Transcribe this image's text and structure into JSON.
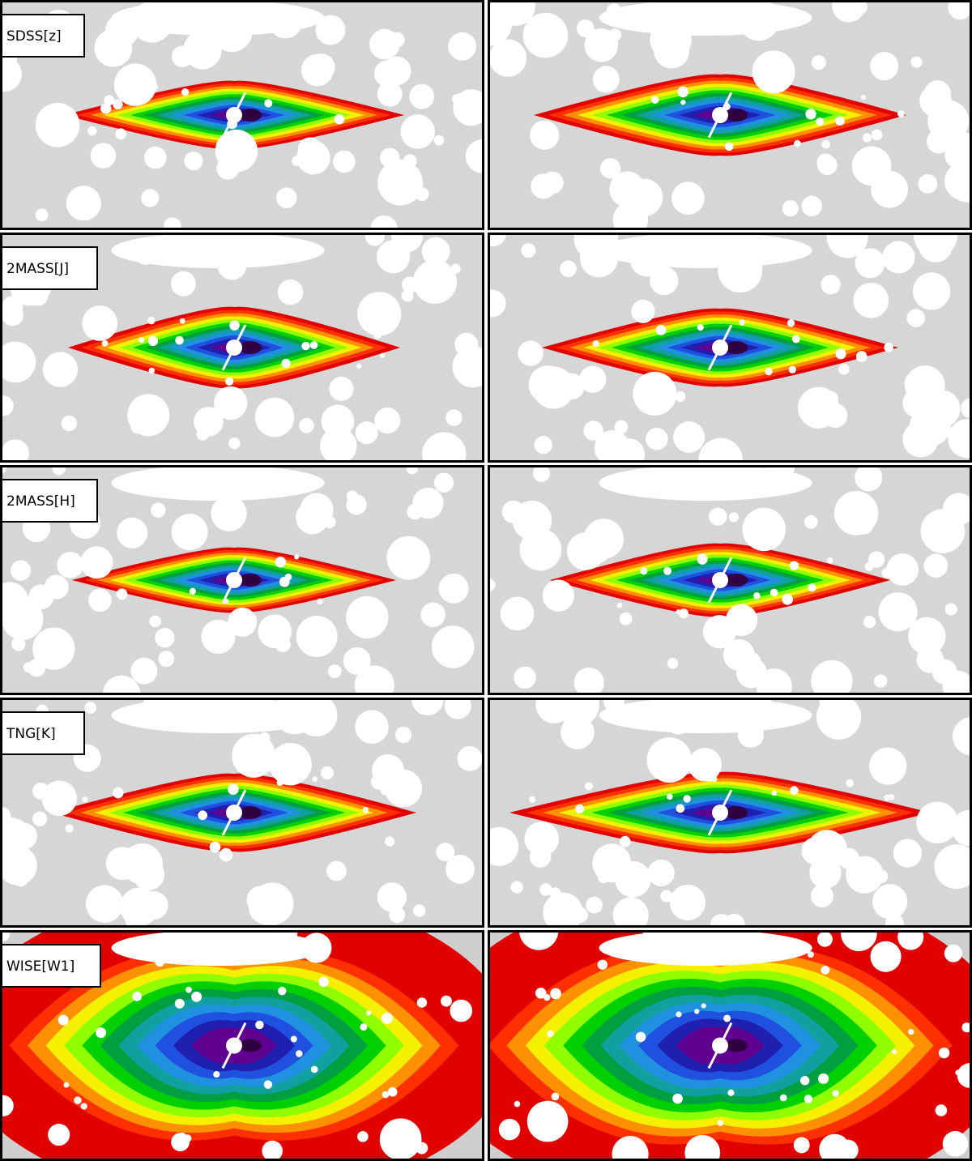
{
  "panels": [
    {
      "label": "SDSS[z]"
    },
    {
      "label": "2MASS[J]"
    },
    {
      "label": "2MASS[H]"
    },
    {
      "label": "TNG[K]"
    },
    {
      "label": "WISE[W1]"
    }
  ]
}
